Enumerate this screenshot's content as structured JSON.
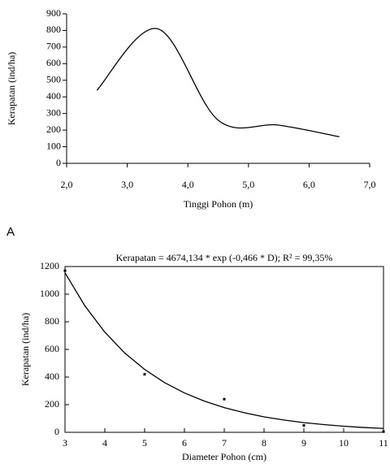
{
  "label": "A",
  "chart_data": [
    {
      "type": "line",
      "xlabel": "Tinggi Pohon (m)",
      "ylabel": "Kerapatan (ind/ha)",
      "xlim": [
        2,
        7
      ],
      "ylim": [
        0,
        900
      ],
      "xticks": [
        {
          "value": 2,
          "label": "2,0"
        },
        {
          "value": 3,
          "label": "3,0"
        },
        {
          "value": 4,
          "label": "4,0"
        },
        {
          "value": 5,
          "label": "5,0"
        },
        {
          "value": 6,
          "label": "6,0"
        },
        {
          "value": 7,
          "label": "7,0"
        }
      ],
      "yticks": [
        0,
        100,
        200,
        300,
        400,
        500,
        600,
        700,
        800,
        900
      ],
      "smooth": true,
      "frame": false,
      "series": [
        {
          "color": "#000000",
          "x": [
            2.5,
            3.5,
            4.5,
            5.5,
            6.5
          ],
          "values": [
            440,
            810,
            260,
            230,
            160
          ]
        }
      ]
    },
    {
      "type": "scatter",
      "title": "Kerapatan = 4674,134 * exp (-0,466 * D); R² = 99,35%",
      "xlabel": "Diameter Pohon (cm)",
      "ylabel": "Kerapatan (ind/ha)",
      "xlim": [
        3,
        11
      ],
      "ylim": [
        0,
        1200
      ],
      "xticks": [
        3,
        4,
        5,
        6,
        7,
        8,
        9,
        10,
        11
      ],
      "yticks": [
        0,
        200,
        400,
        600,
        800,
        1000,
        1200
      ],
      "frame": true,
      "series": [
        {
          "color": "#000000",
          "x": [
            3,
            5,
            7,
            9,
            11
          ],
          "values": [
            1170,
            420,
            240,
            50,
            5
          ]
        },
        {
          "color": "#000000",
          "style": "line",
          "x": [
            3,
            3.5,
            4,
            4.5,
            5,
            5.5,
            6,
            6.5,
            7,
            7.5,
            8,
            8.5,
            9,
            9.5,
            10,
            10.5,
            11
          ],
          "values": [
            1155,
            915,
            725,
            574,
            455,
            360,
            285,
            226,
            179,
            142,
            112,
            89,
            70,
            56,
            44,
            35,
            28
          ]
        }
      ]
    }
  ]
}
